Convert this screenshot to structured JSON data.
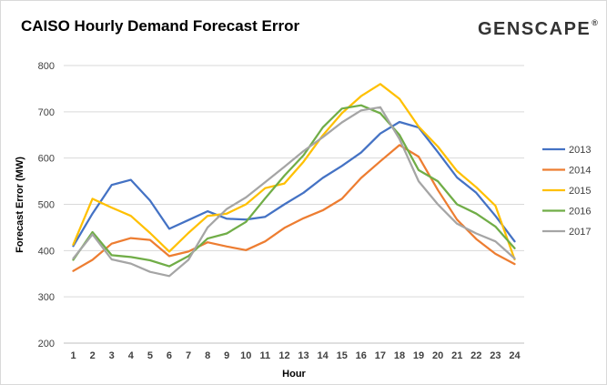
{
  "header": {
    "title": "CAISO Hourly Demand Forecast Error",
    "logo_text": "GENSCAPE",
    "logo_mark": "®"
  },
  "chart_data": {
    "type": "line",
    "title": "CAISO Hourly Demand Forecast Error",
    "xlabel": "Hour",
    "ylabel": "Forecast Error (MW)",
    "ylim": [
      200,
      800
    ],
    "yticks": [
      200,
      300,
      400,
      500,
      600,
      700,
      800
    ],
    "x": [
      1,
      2,
      3,
      4,
      5,
      6,
      7,
      8,
      9,
      10,
      11,
      12,
      13,
      14,
      15,
      16,
      17,
      18,
      19,
      20,
      21,
      22,
      23,
      24
    ],
    "grid": "horizontal",
    "legend_position": "right",
    "series": [
      {
        "name": "2013",
        "color": "#4472C4",
        "values": [
          410,
          480,
          542,
          553,
          508,
          447,
          466,
          485,
          469,
          467,
          473,
          500,
          525,
          557,
          583,
          612,
          653,
          678,
          666,
          613,
          558,
          525,
          475,
          420
        ]
      },
      {
        "name": "2014",
        "color": "#ED7D31",
        "values": [
          356,
          380,
          415,
          427,
          423,
          388,
          398,
          418,
          409,
          401,
          420,
          449,
          470,
          487,
          512,
          557,
          593,
          628,
          603,
          531,
          467,
          425,
          393,
          371
        ]
      },
      {
        "name": "2015",
        "color": "#FFC000",
        "values": [
          413,
          512,
          493,
          475,
          438,
          398,
          438,
          475,
          480,
          500,
          535,
          545,
          592,
          649,
          697,
          734,
          760,
          728,
          668,
          625,
          572,
          537,
          497,
          381
        ]
      },
      {
        "name": "2016",
        "color": "#70AD47",
        "values": [
          380,
          440,
          390,
          386,
          379,
          366,
          388,
          426,
          437,
          462,
          513,
          562,
          606,
          666,
          707,
          714,
          697,
          650,
          574,
          550,
          500,
          480,
          452,
          405
        ]
      },
      {
        "name": "2017",
        "color": "#A5A5A5",
        "values": [
          383,
          435,
          381,
          372,
          354,
          345,
          380,
          450,
          490,
          515,
          548,
          581,
          615,
          645,
          677,
          703,
          710,
          641,
          550,
          500,
          458,
          437,
          420,
          383
        ]
      }
    ]
  }
}
